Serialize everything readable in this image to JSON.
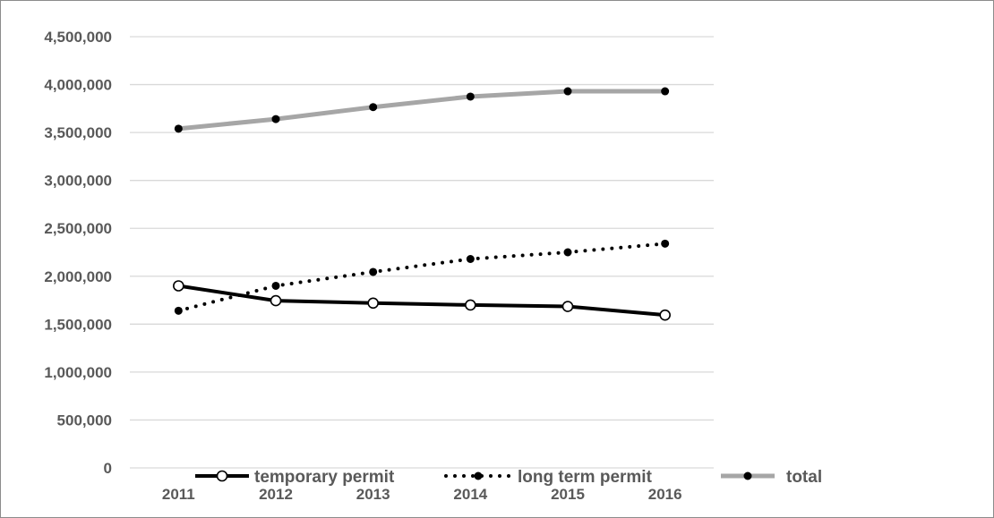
{
  "chart_data": {
    "type": "line",
    "title": "",
    "xlabel": "",
    "ylabel": "",
    "categories": [
      "2011",
      "2012",
      "2013",
      "2014",
      "2015",
      "2016"
    ],
    "ylim": [
      0,
      4500000
    ],
    "yticks": [
      0,
      500000,
      1000000,
      1500000,
      2000000,
      2500000,
      3000000,
      3500000,
      4000000,
      4500000
    ],
    "ytick_labels": [
      "0",
      "500,000",
      "1,000,000",
      "1,500,000",
      "2,000,000",
      "2,500,000",
      "3,000,000",
      "3,500,000",
      "4,000,000",
      "4,500,000"
    ],
    "grid": true,
    "legend_position": "bottom",
    "series": [
      {
        "name": "temporary permit",
        "values": [
          1900000,
          1745000,
          1720000,
          1700000,
          1685000,
          1595000
        ],
        "color": "#000000",
        "line_style": "solid",
        "marker": "open-circle"
      },
      {
        "name": "long term permit",
        "values": [
          1640000,
          1900000,
          2045000,
          2180000,
          2250000,
          2340000
        ],
        "color": "#000000",
        "line_style": "dotted",
        "marker": "filled-circle"
      },
      {
        "name": "total",
        "values": [
          3540000,
          3640000,
          3765000,
          3875000,
          3930000,
          3930000
        ],
        "color": "#a6a6a6",
        "line_style": "solid",
        "marker": "filled-circle"
      }
    ]
  }
}
